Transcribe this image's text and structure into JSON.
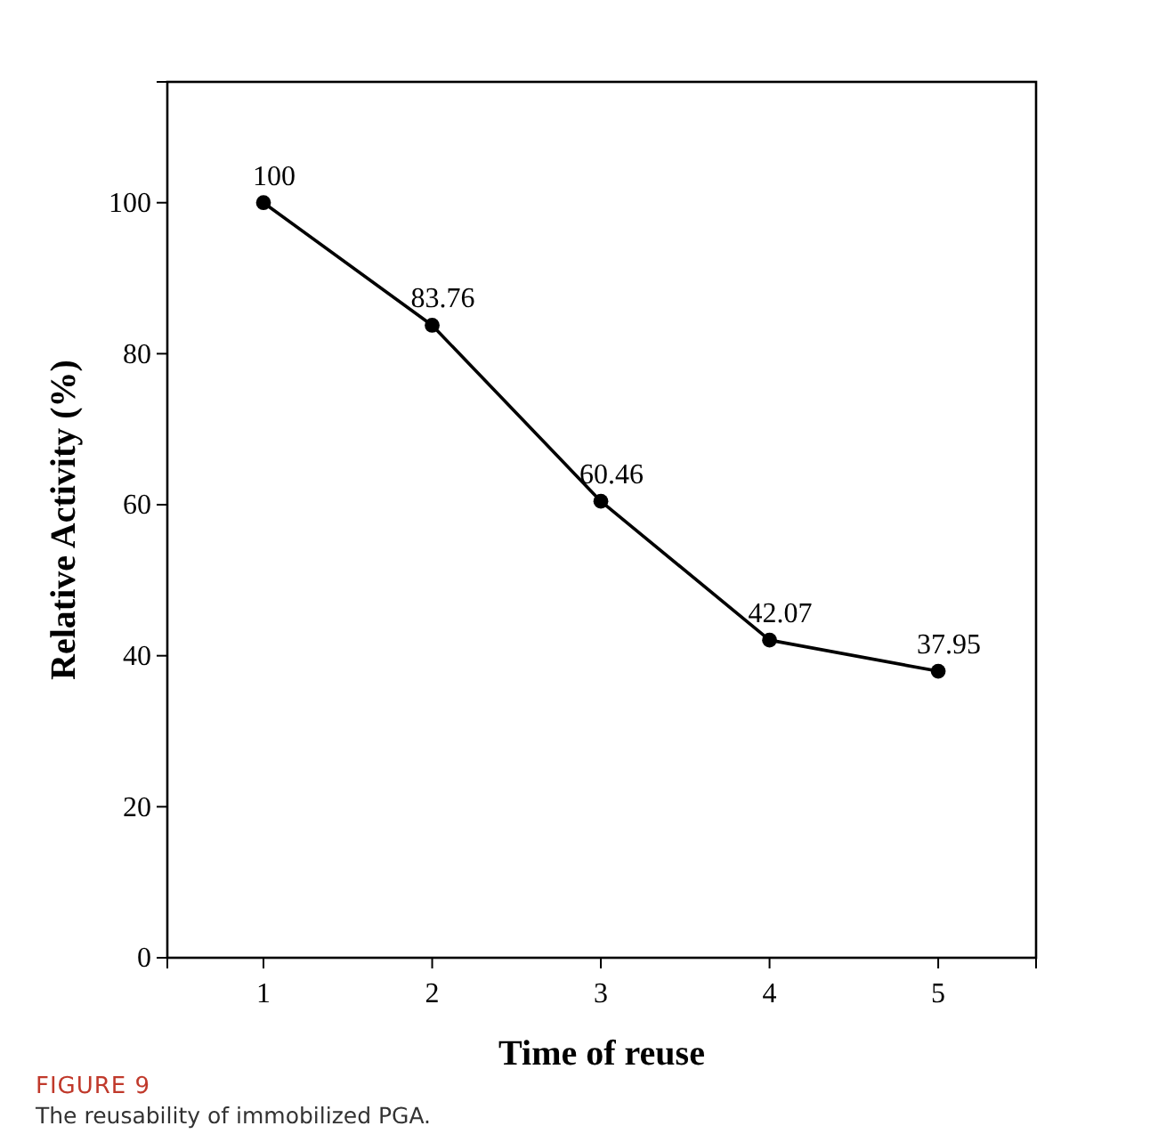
{
  "chart_data": {
    "type": "line",
    "xlabel": "Time of reuse",
    "ylabel": "Relative Activity (%)",
    "x": [
      1,
      2,
      3,
      4,
      5
    ],
    "series": [
      {
        "color": "#000000",
        "values": [
          100,
          83.76,
          60.46,
          42.07,
          37.95
        ]
      }
    ],
    "xlim": [
      0.43,
      5.58
    ],
    "xticks": [
      1,
      2,
      3,
      4,
      5
    ],
    "ylim": [
      0,
      116
    ],
    "yticks": [
      0,
      20,
      40,
      60,
      80,
      100
    ],
    "data_labels": true,
    "marker": "circle",
    "line_style": "solid",
    "grid": false,
    "annotations": [
      "FIGURE 9",
      "The reusability of immobilized PGA."
    ]
  }
}
